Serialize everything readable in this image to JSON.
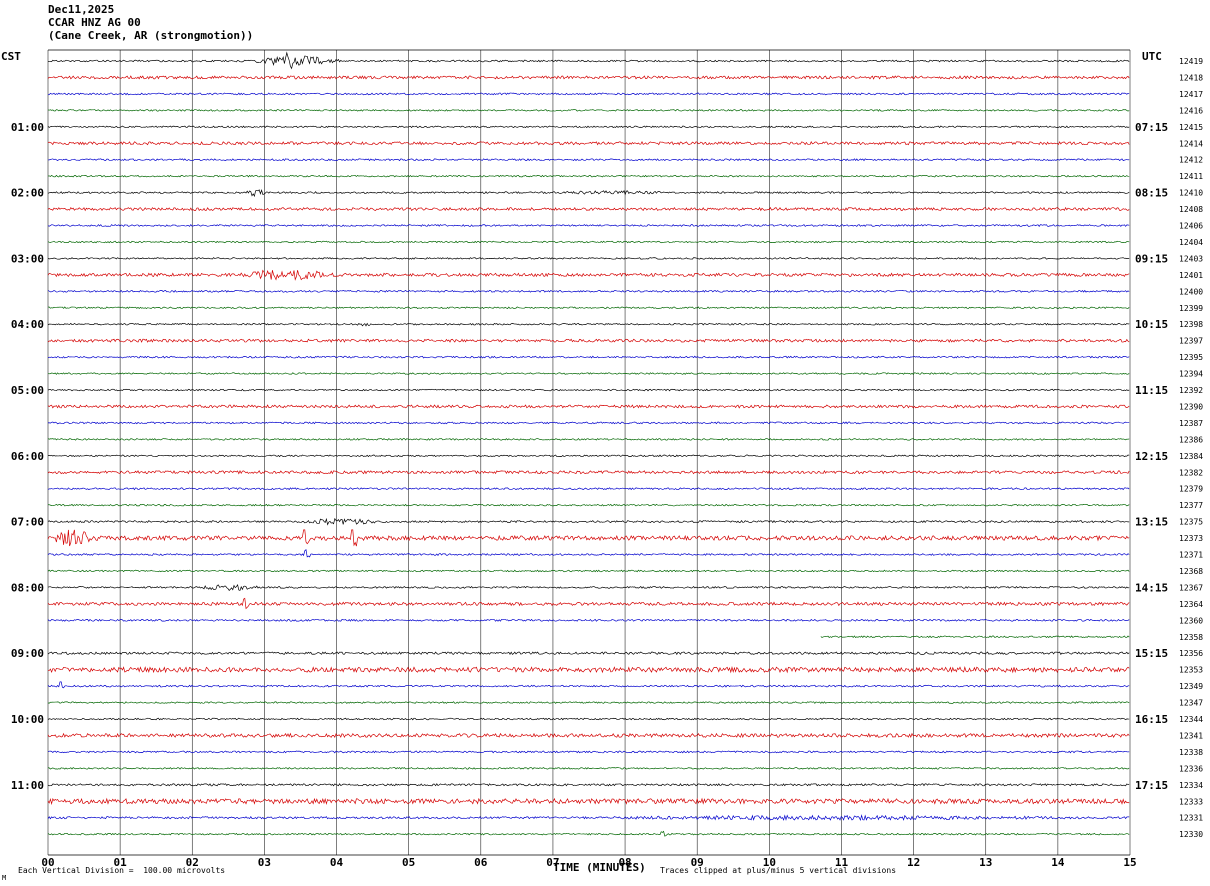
{
  "title": {
    "date": "Dec11,2025",
    "station": "CCAR HNZ AG 00",
    "location": "(Cane Creek, AR (strongmotion))"
  },
  "axes": {
    "left_label": "CST",
    "right_label": "UTC",
    "x_label": "TIME (MINUTES)"
  },
  "footer": {
    "scale_note": "Each Vertical Division =  100.00 microvolts",
    "clip_note": "Traces clipped at plus/minus 5 vertical divisions",
    "watermark": "M"
  },
  "chart_data": {
    "type": "line",
    "subtype": "helicorder-seismogram",
    "xlabel": "TIME (MINUTES)",
    "xlim": [
      0,
      15
    ],
    "x_ticks": [
      "00",
      "01",
      "02",
      "03",
      "04",
      "05",
      "06",
      "07",
      "08",
      "09",
      "10",
      "11",
      "12",
      "13",
      "14",
      "15"
    ],
    "minutes_per_row": 15,
    "row_count": 48,
    "color_cycle": [
      "black",
      "red",
      "blue",
      "green"
    ],
    "colors": {
      "black": "#000000",
      "red": "#d40000",
      "blue": "#0000cc",
      "green": "#006600"
    },
    "base_amp": {
      "black": 0.8,
      "red": 1.3,
      "blue": 0.9,
      "green": 0.8
    },
    "left_hour_labels": [
      {
        "row": 4,
        "label": "01:00"
      },
      {
        "row": 8,
        "label": "02:00"
      },
      {
        "row": 12,
        "label": "03:00"
      },
      {
        "row": 16,
        "label": "04:00"
      },
      {
        "row": 20,
        "label": "05:00"
      },
      {
        "row": 24,
        "label": "06:00"
      },
      {
        "row": 28,
        "label": "07:00"
      },
      {
        "row": 32,
        "label": "08:00"
      },
      {
        "row": 36,
        "label": "09:00"
      },
      {
        "row": 40,
        "label": "10:00"
      },
      {
        "row": 44,
        "label": "11:00"
      }
    ],
    "right_hour_labels": [
      {
        "row": 4,
        "label": "07:15"
      },
      {
        "row": 8,
        "label": "08:15"
      },
      {
        "row": 12,
        "label": "09:15"
      },
      {
        "row": 16,
        "label": "10:15"
      },
      {
        "row": 20,
        "label": "11:15"
      },
      {
        "row": 24,
        "label": "12:15"
      },
      {
        "row": 28,
        "label": "13:15"
      },
      {
        "row": 32,
        "label": "14:15"
      },
      {
        "row": 36,
        "label": "15:15"
      },
      {
        "row": 40,
        "label": "16:15"
      },
      {
        "row": 44,
        "label": "17:15"
      }
    ],
    "right_ids": [
      12419,
      12418,
      12417,
      12416,
      12415,
      12414,
      12412,
      12411,
      12410,
      12408,
      12406,
      12404,
      12403,
      12401,
      12400,
      12399,
      12398,
      12397,
      12395,
      12394,
      12392,
      12390,
      12387,
      12386,
      12384,
      12382,
      12379,
      12377,
      12375,
      12373,
      12371,
      12368,
      12367,
      12364,
      12360,
      12358,
      12356,
      12353,
      12349,
      12347,
      12344,
      12341,
      12338,
      12336,
      12334,
      12333,
      12331,
      12330
    ],
    "row_noise": [
      1.1,
      1.1,
      1,
      1,
      1,
      1.1,
      1,
      1,
      1.1,
      1.1,
      1,
      1,
      1,
      1.2,
      1,
      1,
      1,
      1.1,
      1,
      1,
      1,
      1.1,
      1,
      1,
      1,
      1.1,
      1,
      1,
      1.2,
      1.7,
      1,
      1,
      1.1,
      1.2,
      1,
      1,
      1.5,
      1.9,
      1,
      1,
      1,
      1.4,
      1,
      1,
      1.3,
      1.9,
      1.2,
      1
    ],
    "events": [
      {
        "row": 0,
        "kind": "burst",
        "start": 2.8,
        "end": 4.1,
        "amp": 5
      },
      {
        "row": 0,
        "kind": "spike",
        "min": 3.3,
        "amp": 8
      },
      {
        "row": 8,
        "kind": "burst",
        "start": 2.73,
        "end": 3.05,
        "amp": 5
      },
      {
        "row": 8,
        "kind": "burst",
        "start": 7.0,
        "end": 8.6,
        "amp": 1.2
      },
      {
        "row": 13,
        "kind": "burst",
        "start": 2.6,
        "end": 4.0,
        "amp": 2.5
      },
      {
        "row": 16,
        "kind": "burst",
        "start": 4.2,
        "end": 4.5,
        "amp": 1.5
      },
      {
        "row": 28,
        "kind": "burst",
        "start": 3.5,
        "end": 4.6,
        "amp": 2.5
      },
      {
        "row": 29,
        "kind": "burst",
        "start": 0.0,
        "end": 0.7,
        "amp": 3
      },
      {
        "row": 29,
        "kind": "spike",
        "min": 3.53,
        "amp": 11
      },
      {
        "row": 29,
        "kind": "spike",
        "min": 4.2,
        "amp": 11
      },
      {
        "row": 30,
        "kind": "spike",
        "min": 3.55,
        "amp": 4
      },
      {
        "row": 32,
        "kind": "burst",
        "start": 2.1,
        "end": 2.95,
        "amp": 3
      },
      {
        "row": 33,
        "kind": "spike",
        "min": 2.7,
        "amp": 6
      },
      {
        "row": 38,
        "kind": "spike",
        "min": 0.15,
        "amp": 4
      },
      {
        "row": 46,
        "kind": "burst",
        "start": 7.6,
        "end": 14.2,
        "amp": 1.2
      },
      {
        "row": 47,
        "kind": "spike",
        "min": 8.5,
        "amp": 2.5
      }
    ],
    "partial_rows": [
      {
        "row": 35,
        "start_min": 10.7
      }
    ]
  }
}
